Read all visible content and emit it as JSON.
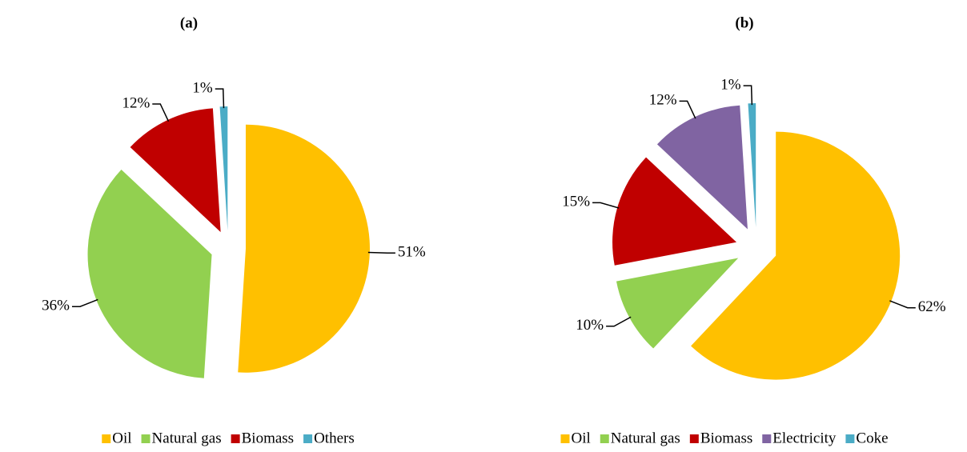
{
  "chart_data": [
    {
      "type": "pie",
      "title": "(a)",
      "categories": [
        "Oil",
        "Natural gas",
        "Biomass",
        "Others"
      ],
      "values": [
        51,
        36,
        12,
        1
      ],
      "value_labels": [
        "51%",
        "36%",
        "12%",
        "1%"
      ],
      "colors": [
        "#FFC000",
        "#92D050",
        "#C00000",
        "#4BACC6"
      ]
    },
    {
      "type": "pie",
      "title": "(b)",
      "categories": [
        "Oil",
        "Natural gas",
        "Biomass",
        "Electricity",
        "Coke"
      ],
      "values": [
        62,
        10,
        15,
        12,
        1
      ],
      "value_labels": [
        "62%",
        "10%",
        "15%",
        "12%",
        "1%"
      ],
      "colors": [
        "#FFC000",
        "#92D050",
        "#C00000",
        "#8064A2",
        "#4BACC6"
      ]
    }
  ]
}
